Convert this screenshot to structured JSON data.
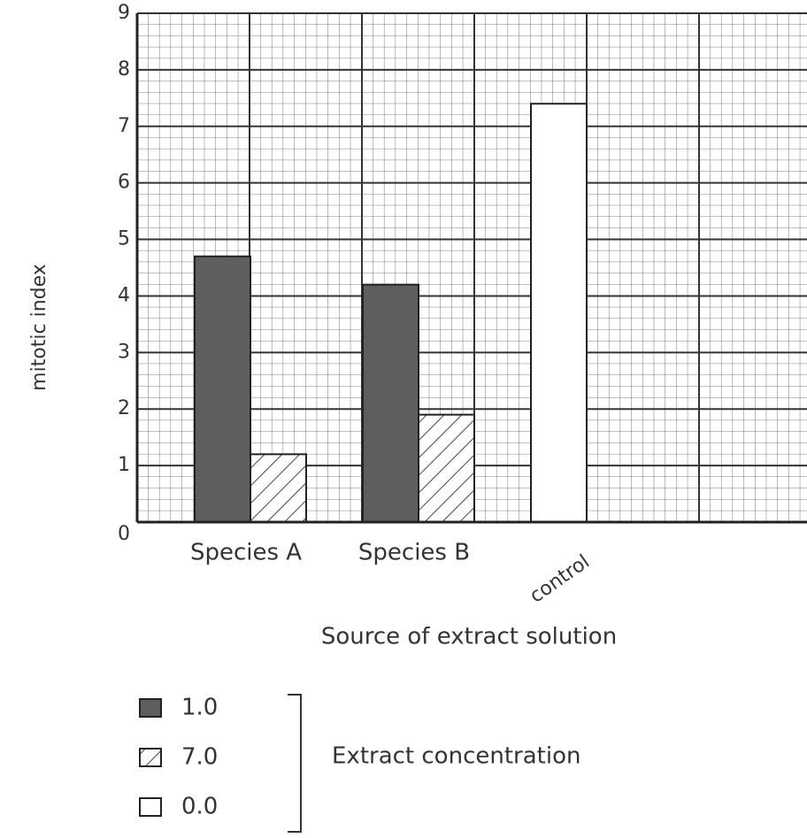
{
  "chart_data": {
    "type": "bar",
    "y_label": "mitotic index",
    "x_label": "Source of extract solution",
    "categories": [
      "Species A",
      "Species B",
      "control"
    ],
    "series": [
      {
        "name": "1.0",
        "color": "#5e5e5e",
        "values": [
          4.7,
          4.2,
          null
        ]
      },
      {
        "name": "7.0",
        "color": "#ffffff",
        "hatch": true,
        "values": [
          1.2,
          1.9,
          null
        ]
      },
      {
        "name": "0.0",
        "color": "#ffffff",
        "values": [
          null,
          null,
          7.4
        ]
      }
    ],
    "legend_title": "Extract concentration",
    "ylim": [
      0,
      9
    ],
    "yticks": [
      0,
      1,
      2,
      3,
      4,
      5,
      6,
      7,
      8,
      9
    ],
    "grid": true
  }
}
